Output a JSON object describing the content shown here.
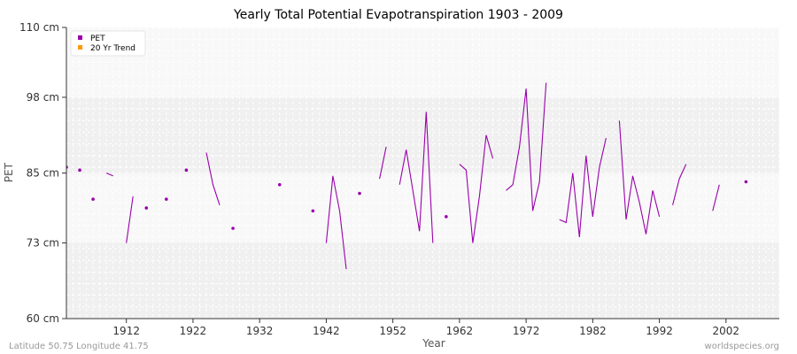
{
  "chart_data": {
    "type": "line",
    "title": "Yearly Total Potential Evapotranspiration 1903 - 2009",
    "xlabel": "Year",
    "ylabel": "PET",
    "ylim": [
      60,
      110
    ],
    "xlim": [
      1903,
      2010
    ],
    "yticks": [
      {
        "value": 60,
        "label": "60 cm"
      },
      {
        "value": 73,
        "label": "73 cm"
      },
      {
        "value": 85,
        "label": "85 cm"
      },
      {
        "value": 98,
        "label": "98 cm"
      },
      {
        "value": 110,
        "label": "110 cm"
      }
    ],
    "xticks": [
      1912,
      1922,
      1932,
      1942,
      1952,
      1962,
      1972,
      1982,
      1992,
      2002
    ],
    "legend": [
      {
        "name": "PET",
        "color": "#9900aa"
      },
      {
        "name": "20 Yr Trend",
        "color": "#ff9900"
      }
    ],
    "series": [
      {
        "name": "PET",
        "color": "#9900aa",
        "points": [
          [
            1903,
            86.0
          ],
          [
            1905,
            85.5
          ],
          [
            1907,
            80.5
          ],
          [
            1909,
            85.0
          ],
          [
            1910,
            84.5
          ],
          [
            1912,
            73.0
          ],
          [
            1913,
            81.0
          ],
          [
            1915,
            79.0
          ],
          [
            1918,
            80.5
          ],
          [
            1921,
            85.5
          ],
          [
            1924,
            88.5
          ],
          [
            1925,
            83.0
          ],
          [
            1926,
            79.5
          ],
          [
            1928,
            75.5
          ],
          [
            1935,
            83.0
          ],
          [
            1940,
            78.5
          ],
          [
            1942,
            73.0
          ],
          [
            1943,
            84.5
          ],
          [
            1944,
            78.5
          ],
          [
            1945,
            68.5
          ],
          [
            1947,
            81.5
          ],
          [
            1950,
            84.0
          ],
          [
            1951,
            89.5
          ],
          [
            1953,
            83.0
          ],
          [
            1954,
            89.0
          ],
          [
            1955,
            82.0
          ],
          [
            1956,
            75.0
          ],
          [
            1957,
            95.5
          ],
          [
            1958,
            73.0
          ],
          [
            1960,
            77.5
          ],
          [
            1962,
            86.5
          ],
          [
            1963,
            85.5
          ],
          [
            1964,
            73.0
          ],
          [
            1965,
            81.0
          ],
          [
            1966,
            91.5
          ],
          [
            1967,
            87.5
          ],
          [
            1969,
            82.0
          ],
          [
            1970,
            83.0
          ],
          [
            1971,
            89.5
          ],
          [
            1972,
            99.5
          ],
          [
            1973,
            78.5
          ],
          [
            1974,
            83.5
          ],
          [
            1975,
            100.5
          ],
          [
            1977,
            77.0
          ],
          [
            1978,
            76.5
          ],
          [
            1979,
            85.0
          ],
          [
            1980,
            74.0
          ],
          [
            1981,
            88.0
          ],
          [
            1982,
            77.5
          ],
          [
            1983,
            86.0
          ],
          [
            1984,
            91.0
          ],
          [
            1986,
            94.0
          ],
          [
            1987,
            77.0
          ],
          [
            1988,
            84.5
          ],
          [
            1989,
            80.0
          ],
          [
            1990,
            74.5
          ],
          [
            1991,
            82.0
          ],
          [
            1992,
            77.5
          ],
          [
            1994,
            79.5
          ],
          [
            1995,
            84.0
          ],
          [
            1996,
            86.5
          ],
          [
            2000,
            78.5
          ],
          [
            2001,
            83.0
          ],
          [
            2005,
            83.5
          ]
        ]
      },
      {
        "name": "20 Yr Trend",
        "color": "#ff9900",
        "points": []
      }
    ]
  },
  "footer": {
    "location": "Latitude 50.75 Longitude 41.75",
    "source": "worldspecies.org"
  }
}
